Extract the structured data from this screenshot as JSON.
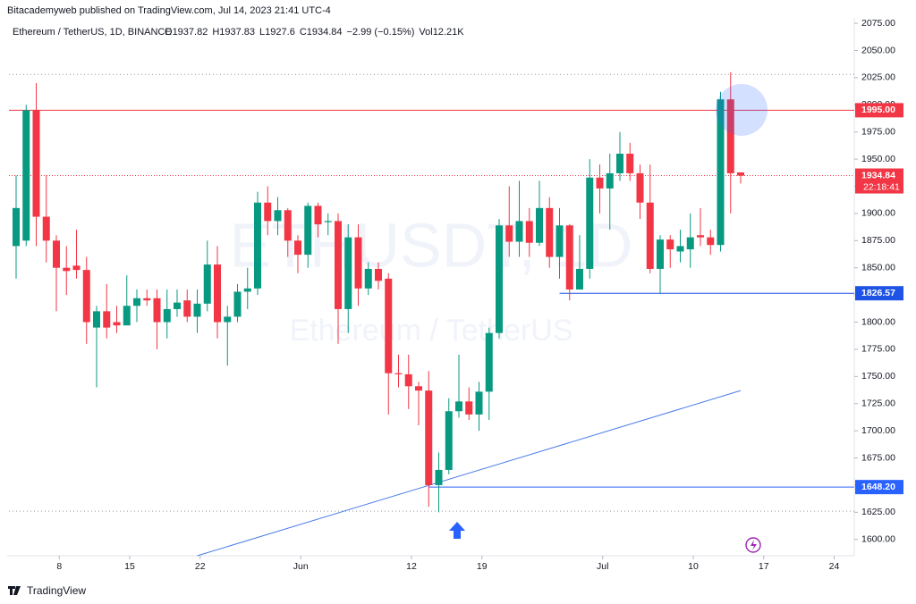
{
  "header": {
    "publisher": "Bitacademyweb published on TradingView.com, Jul 14, 2023 21:41 UTC-4",
    "symbol": "Ethereum / TetherUS, 1D, BINANCE",
    "labels": {
      "open": "O",
      "high": "H",
      "low": "L",
      "close": "C",
      "volume": "Vol"
    },
    "change": "−2.99 (−0.15%)",
    "volume": "12.21K"
  },
  "chart_data": {
    "type": "candlestick",
    "watermark": "ETHUSDT, 1D",
    "watermark_sub": "Ethereum / TetherUS",
    "up_color": "#089981",
    "down_color": "#f23645",
    "x": [
      "2023-05-03",
      "2023-05-04",
      "2023-05-05",
      "2023-05-06",
      "2023-05-07",
      "2023-05-08",
      "2023-05-09",
      "2023-05-10",
      "2023-05-11",
      "2023-05-12",
      "2023-05-13",
      "2023-05-14",
      "2023-05-15",
      "2023-05-16",
      "2023-05-17",
      "2023-05-18",
      "2023-05-19",
      "2023-05-20",
      "2023-05-21",
      "2023-05-22",
      "2023-05-23",
      "2023-05-24",
      "2023-05-25",
      "2023-05-26",
      "2023-05-27",
      "2023-05-28",
      "2023-05-29",
      "2023-05-30",
      "2023-05-31",
      "2023-06-01",
      "2023-06-02",
      "2023-06-03",
      "2023-06-04",
      "2023-06-05",
      "2023-06-06",
      "2023-06-07",
      "2023-06-08",
      "2023-06-09",
      "2023-06-10",
      "2023-06-11",
      "2023-06-12",
      "2023-06-13",
      "2023-06-14",
      "2023-06-15",
      "2023-06-16",
      "2023-06-17",
      "2023-06-18",
      "2023-06-19",
      "2023-06-20",
      "2023-06-21",
      "2023-06-22",
      "2023-06-23",
      "2023-06-24",
      "2023-06-25",
      "2023-06-26",
      "2023-06-27",
      "2023-06-28",
      "2023-06-29",
      "2023-06-30",
      "2023-07-01",
      "2023-07-02",
      "2023-07-03",
      "2023-07-04",
      "2023-07-05",
      "2023-07-06",
      "2023-07-07",
      "2023-07-08",
      "2023-07-09",
      "2023-07-10",
      "2023-07-11",
      "2023-07-12",
      "2023-07-13",
      "2023-07-14"
    ],
    "open": [
      1870,
      1875,
      1995,
      1897,
      1875,
      1850,
      1852,
      1848,
      1795,
      1810,
      1800,
      1797,
      1815,
      1822,
      1822,
      1800,
      1812,
      1820,
      1805,
      1817,
      1853,
      1800,
      1805,
      1828,
      1831,
      1910,
      1893,
      1903,
      1875,
      1862,
      1907,
      1892,
      1893,
      1812,
      1878,
      1831,
      1849,
      1840,
      1753,
      1752,
      1741,
      1737,
      1650,
      1664,
      1718,
      1727,
      1715,
      1736,
      1790,
      1889,
      1874,
      1893,
      1873,
      1905,
      1860,
      1889,
      1830,
      1849,
      1933,
      1923,
      1937,
      1955,
      1937,
      1910,
      1849,
      1876,
      1865,
      1867,
      1880,
      1878,
      1871,
      2005,
      1937.82
    ],
    "high": [
      1935,
      2000,
      2020,
      1935,
      1880,
      1870,
      1885,
      1860,
      1815,
      1835,
      1815,
      1843,
      1830,
      1830,
      1830,
      1830,
      1830,
      1830,
      1830,
      1875,
      1870,
      1815,
      1835,
      1850,
      1920,
      1925,
      1915,
      1905,
      1880,
      1910,
      1910,
      1900,
      1900,
      1890,
      1890,
      1855,
      1855,
      1845,
      1770,
      1770,
      1745,
      1755,
      1680,
      1730,
      1770,
      1740,
      1745,
      1795,
      1895,
      1925,
      1930,
      1905,
      1930,
      1915,
      1905,
      1890,
      1880,
      1950,
      1945,
      1955,
      1975,
      1965,
      1945,
      1945,
      1880,
      1880,
      1885,
      1900,
      1905,
      1885,
      2012,
      2030,
      1937.83
    ],
    "low": [
      1840,
      1870,
      1870,
      1855,
      1810,
      1825,
      1840,
      1780,
      1740,
      1785,
      1790,
      1800,
      1800,
      1815,
      1775,
      1785,
      1805,
      1800,
      1790,
      1810,
      1785,
      1760,
      1800,
      1812,
      1825,
      1880,
      1880,
      1860,
      1845,
      1850,
      1878,
      1880,
      1780,
      1790,
      1815,
      1825,
      1830,
      1715,
      1740,
      1720,
      1705,
      1630,
      1625,
      1660,
      1712,
      1710,
      1700,
      1710,
      1785,
      1860,
      1860,
      1860,
      1870,
      1850,
      1840,
      1820,
      1830,
      1840,
      1900,
      1885,
      1930,
      1930,
      1895,
      1845,
      1826,
      1850,
      1855,
      1850,
      1870,
      1862,
      1865,
      1900,
      1927.6
    ],
    "close": [
      1905,
      1995,
      1897,
      1875,
      1850,
      1847,
      1848,
      1800,
      1810,
      1795,
      1797,
      1815,
      1822,
      1820,
      1800,
      1812,
      1818,
      1805,
      1817,
      1853,
      1800,
      1805,
      1828,
      1831,
      1910,
      1893,
      1903,
      1875,
      1862,
      1907,
      1890,
      1893,
      1812,
      1878,
      1831,
      1849,
      1838,
      1753,
      1752,
      1741,
      1737,
      1650,
      1664,
      1718,
      1727,
      1715,
      1736,
      1790,
      1889,
      1874,
      1893,
      1873,
      1905,
      1860,
      1889,
      1830,
      1849,
      1933,
      1923,
      1937,
      1955,
      1937,
      1910,
      1849,
      1876,
      1867,
      1870,
      1878,
      1878,
      1871,
      2005,
      1937,
      1934.84
    ],
    "xlim": [
      "2023-05-03",
      "2023-07-26"
    ],
    "xticks": [
      {
        "value": "2023-05-08",
        "label": "8"
      },
      {
        "value": "2023-05-15",
        "label": "15"
      },
      {
        "value": "2023-05-22",
        "label": "22"
      },
      {
        "value": "2023-06-01",
        "label": "Jun"
      },
      {
        "value": "2023-06-12",
        "label": "12"
      },
      {
        "value": "2023-06-19",
        "label": "19"
      },
      {
        "value": "2023-07-01",
        "label": "Jul"
      },
      {
        "value": "2023-07-10",
        "label": "10"
      },
      {
        "value": "2023-07-17",
        "label": "17"
      },
      {
        "value": "2023-07-24",
        "label": "24"
      }
    ],
    "ylim": [
      1585,
      2080
    ],
    "yticks": [
      {
        "value": 1600,
        "label": "1600.00"
      },
      {
        "value": 1625,
        "label": "1625.00"
      },
      {
        "value": 1650,
        "label": "1650.00"
      },
      {
        "value": 1675,
        "label": "1675.00"
      },
      {
        "value": 1700,
        "label": "1700.00"
      },
      {
        "value": 1725,
        "label": "1725.00"
      },
      {
        "value": 1750,
        "label": "1750.00"
      },
      {
        "value": 1775,
        "label": "1775.00"
      },
      {
        "value": 1800,
        "label": "1800.00"
      },
      {
        "value": 1825,
        "label": "1825.00"
      },
      {
        "value": 1850,
        "label": "1850.00"
      },
      {
        "value": 1875,
        "label": "1875.00"
      },
      {
        "value": 1900,
        "label": "1900.00"
      },
      {
        "value": 1925,
        "label": "1925.00"
      },
      {
        "value": 1950,
        "label": "1950.00"
      },
      {
        "value": 1975,
        "label": "1975.00"
      },
      {
        "value": 2000,
        "label": "2000.00"
      },
      {
        "value": 2025,
        "label": "2025.00"
      },
      {
        "value": 2050,
        "label": "2050.00"
      },
      {
        "value": 2075,
        "label": "2075.00"
      }
    ],
    "levels": [
      {
        "value": 1995,
        "label": "1995.00",
        "color": "#f23645"
      },
      {
        "value": 1826.57,
        "color": "#1e53e5",
        "from": "2023-06-26"
      },
      {
        "value": 1648.2,
        "label": "1648.20",
        "color": "#2962ff",
        "from": "2023-06-13"
      }
    ],
    "dotted_levels": [
      2028,
      1626
    ],
    "countdown": "22:18:41",
    "trendline": {
      "x": [
        "2023-05-21",
        "2023-07-14"
      ],
      "y": [
        1585,
        1737
      ],
      "color": "#4a7be8"
    }
  },
  "footer": "TradingView"
}
